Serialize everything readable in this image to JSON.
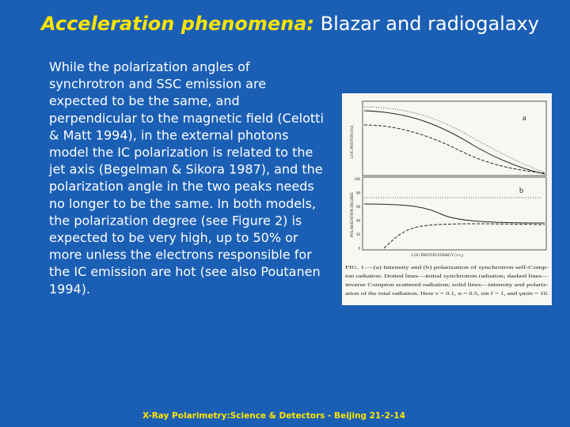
{
  "header": {
    "title_emphasis": "Acceleration phenomena:",
    "title_rest": "Blazar and radiogalaxy"
  },
  "body": {
    "lines": [
      "While the polarization angles of",
      "synchrotron and SSC emission are",
      "expected to be the same, and",
      "perpendicular to the magnetic field (Celotti",
      "& Matt 1994), in the external photons",
      "model the IC polarization is related to the",
      "jet axis (Begelman & Sikora 1987), and the",
      "polarization angle in the two peaks needs",
      "no longer to be the same. In both models,",
      "the polarization degree (see Figure 2) is",
      "expected to be very high, up to 50% or",
      "more unless the electrons responsible for",
      "the IC emission are hot (see also Poutanen",
      "1994)."
    ]
  },
  "figure": {
    "panel_a": "a",
    "panel_b": "b",
    "y_label_a": "LOG PHOTON F(ν)",
    "y_label_b": "POLARIZATION DEGREE",
    "x_label": "LOG PHOTON ENERGY (ν/ν₀)",
    "ticks_b": [
      "100",
      "80",
      "60",
      "40",
      "20",
      "0"
    ],
    "caption": [
      "FIG. 1.—(a) Intensity and (b) polarization of synchrotron self-Comp-",
      "ton radiation. Dotted lines—initial synchrotron radiation; dashed lines—",
      "inverse Compton scattered radiation; solid lines—intensity and polariz-",
      "ation of the total radiation. Here ν = 0.1, α = 0.5, sin f = 1, and γmin = 10."
    ]
  },
  "footer": {
    "text": "X-Ray Polarimetry:Science & Detectors - Beijing 21-2-14"
  }
}
